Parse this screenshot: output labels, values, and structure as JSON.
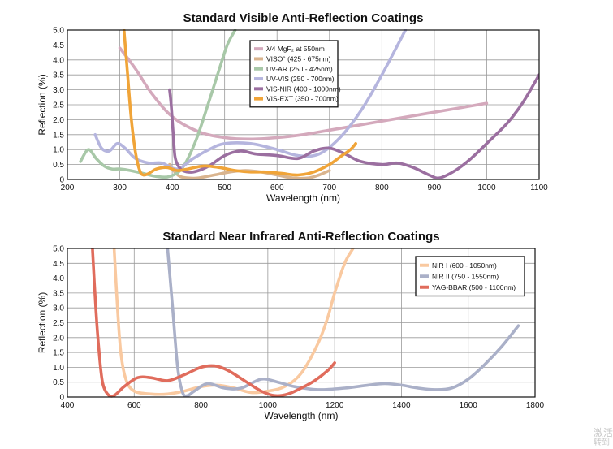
{
  "chart_data": [
    {
      "type": "line",
      "title": "Standard Visible Anti-Reflection Coatings",
      "xlabel": "Wavelength (nm)",
      "ylabel": "Reflection (%)",
      "xlim": [
        200,
        1100
      ],
      "ylim": [
        0,
        5.0
      ],
      "xticks": [
        "200",
        "300",
        "400",
        "500",
        "600",
        "700",
        "800",
        "900",
        "1000",
        "1100"
      ],
      "yticks": [
        "0",
        "0.5",
        "1.0",
        "1.5",
        "2.0",
        "2.5",
        "3.0",
        "3.5",
        "4.0",
        "4.5",
        "5.0"
      ],
      "grid": true,
      "legend_position": "top-center",
      "series": [
        {
          "name": "λ/4 MgF₂ at 550nm",
          "color": "#d4a9bc",
          "x": [
            300,
            330,
            360,
            400,
            450,
            500,
            550,
            600,
            650,
            700,
            750,
            800,
            850,
            900,
            950,
            1000
          ],
          "y": [
            4.4,
            3.7,
            2.9,
            2.1,
            1.6,
            1.4,
            1.35,
            1.4,
            1.5,
            1.65,
            1.8,
            1.95,
            2.1,
            2.25,
            2.4,
            2.55
          ]
        },
        {
          "name": "VISO° (425 - 675nm)",
          "color": "#d9b48e",
          "x": [
            395,
            405,
            415,
            430,
            450,
            480,
            510,
            540,
            570,
            600,
            630,
            660,
            680,
            700
          ],
          "y": [
            0.5,
            0.25,
            0.1,
            0.05,
            0.05,
            0.15,
            0.25,
            0.3,
            0.25,
            0.15,
            0.05,
            0.05,
            0.15,
            0.3
          ]
        },
        {
          "name": "UV-AR (250 - 425nm)",
          "color": "#a8c8a8",
          "x": [
            225,
            240,
            255,
            270,
            285,
            300,
            320,
            345,
            370,
            395,
            420,
            445,
            470,
            490,
            505,
            520
          ],
          "y": [
            0.6,
            1.0,
            0.7,
            0.45,
            0.35,
            0.35,
            0.3,
            0.2,
            0.1,
            0.1,
            0.4,
            1.3,
            2.6,
            3.7,
            4.5,
            5.0
          ]
        },
        {
          "name": "UV-VIS (250 - 700nm)",
          "color": "#b5b5de",
          "x": [
            253,
            265,
            280,
            295,
            310,
            330,
            355,
            380,
            410,
            440,
            470,
            500,
            550,
            600,
            640,
            680,
            720,
            760,
            800,
            845
          ],
          "y": [
            1.5,
            1.05,
            0.95,
            1.2,
            1.05,
            0.7,
            0.55,
            0.55,
            0.35,
            0.7,
            1.0,
            1.2,
            1.2,
            1.0,
            0.8,
            0.85,
            1.4,
            2.3,
            3.5,
            5.0
          ]
        },
        {
          "name": "VIS-NIR (400 - 1000nm)",
          "color": "#9b6fa0",
          "x": [
            395,
            398,
            402,
            405,
            410,
            420,
            440,
            470,
            500,
            530,
            560,
            600,
            640,
            670,
            700,
            730,
            760,
            800,
            830,
            860,
            890,
            910,
            940,
            970,
            1000,
            1040,
            1070,
            1100
          ],
          "y": [
            3.0,
            2.5,
            1.5,
            0.8,
            0.5,
            0.3,
            0.25,
            0.45,
            0.8,
            0.95,
            0.85,
            0.8,
            0.7,
            0.95,
            1.05,
            0.85,
            0.6,
            0.5,
            0.55,
            0.4,
            0.15,
            0.05,
            0.3,
            0.7,
            1.2,
            1.9,
            2.6,
            3.5
          ]
        },
        {
          "name": "VIS-EXT (350 - 700nm)",
          "color": "#f0a438",
          "x": [
            308,
            315,
            322,
            330,
            338,
            345,
            355,
            370,
            390,
            410,
            430,
            460,
            490,
            520,
            550,
            580,
            610,
            640,
            670,
            700,
            720,
            740,
            750
          ],
          "y": [
            5.0,
            3.5,
            2.0,
            0.9,
            0.3,
            0.15,
            0.2,
            0.35,
            0.4,
            0.3,
            0.35,
            0.45,
            0.4,
            0.3,
            0.25,
            0.25,
            0.2,
            0.15,
            0.25,
            0.5,
            0.75,
            1.0,
            1.2
          ]
        }
      ]
    },
    {
      "type": "line",
      "title": "Standard Near Infrared Anti-Reflection Coatings",
      "xlabel": "Wavelength (nm)",
      "ylabel": "Reflection (%)",
      "xlim": [
        400,
        1800
      ],
      "ylim": [
        0,
        5.0
      ],
      "xticks": [
        "400",
        "600",
        "800",
        "1000",
        "1200",
        "1400",
        "1600",
        "1800"
      ],
      "yticks": [
        "0",
        "0.5",
        "1.0",
        "1.5",
        "2.0",
        "2.5",
        "3.0",
        "3.5",
        "4.0",
        "4.5",
        "5.0"
      ],
      "grid": true,
      "legend_position": "top-right",
      "series": [
        {
          "name": "NIR I (600 - 1050nm)",
          "color": "#f9c9a0",
          "x": [
            540,
            550,
            560,
            575,
            600,
            650,
            700,
            750,
            800,
            850,
            900,
            950,
            1000,
            1050,
            1100,
            1150,
            1180,
            1200,
            1230,
            1255
          ],
          "y": [
            5.0,
            3.0,
            1.5,
            0.6,
            0.2,
            0.1,
            0.1,
            0.2,
            0.35,
            0.4,
            0.3,
            0.15,
            0.2,
            0.35,
            0.8,
            1.8,
            2.7,
            3.5,
            4.5,
            5.0
          ]
        },
        {
          "name": "NIR II (750 - 1550nm)",
          "color": "#aab0c8",
          "x": [
            700,
            715,
            730,
            745,
            760,
            780,
            820,
            870,
            920,
            980,
            1030,
            1080,
            1150,
            1230,
            1300,
            1350,
            1400,
            1450,
            1500,
            1550,
            1600,
            1650,
            1700,
            1750
          ],
          "y": [
            5.0,
            3.0,
            1.0,
            0.15,
            0.05,
            0.2,
            0.45,
            0.3,
            0.3,
            0.6,
            0.5,
            0.35,
            0.25,
            0.3,
            0.4,
            0.45,
            0.4,
            0.3,
            0.25,
            0.3,
            0.6,
            1.1,
            1.7,
            2.4
          ]
        },
        {
          "name": "YAG-BBAR (500 - 1100nm)",
          "color": "#e06c5c",
          "x": [
            475,
            485,
            495,
            505,
            520,
            540,
            570,
            610,
            650,
            700,
            750,
            800,
            840,
            880,
            930,
            980,
            1020,
            1060,
            1100,
            1140,
            1180,
            1200
          ],
          "y": [
            5.0,
            3.0,
            1.5,
            0.5,
            0.1,
            0.05,
            0.35,
            0.65,
            0.65,
            0.55,
            0.75,
            1.0,
            1.05,
            0.9,
            0.55,
            0.2,
            0.05,
            0.1,
            0.3,
            0.55,
            0.9,
            1.15
          ]
        }
      ]
    }
  ],
  "watermark": {
    "line1": "激活",
    "line2": "转到"
  }
}
